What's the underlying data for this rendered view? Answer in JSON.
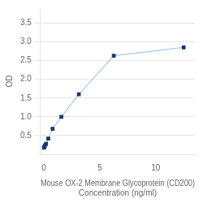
{
  "chart_data": {
    "type": "line",
    "x": [
      0,
      0.049,
      0.098,
      0.195,
      0.391,
      0.781,
      1.563,
      3.125,
      6.25,
      12.5
    ],
    "series": [
      {
        "values": [
          0.176,
          0.199,
          0.235,
          0.28,
          0.42,
          0.68,
          1.0,
          1.6,
          2.63,
          2.85
        ],
        "color": "#a8c8e8",
        "marker_color": "#1a3a6b",
        "marker": "square"
      }
    ],
    "xlabel": "Mouse OX-2 Membrane Glycoprotein (CD200)\nConcentration (ng/ml)",
    "ylabel": "OD",
    "xlim": [
      -0.3,
      13.5
    ],
    "xticks": [
      0,
      5,
      10
    ],
    "ylim": [
      0.0,
      3.9
    ],
    "yticks": [
      0.5,
      {
        "value": 1.0,
        "label": "1.0"
      },
      1.5,
      {
        "value": 2.0,
        "label": "2.0"
      },
      2.5,
      {
        "value": 3.0,
        "label": "3.0"
      },
      3.5
    ],
    "grid": "y"
  }
}
